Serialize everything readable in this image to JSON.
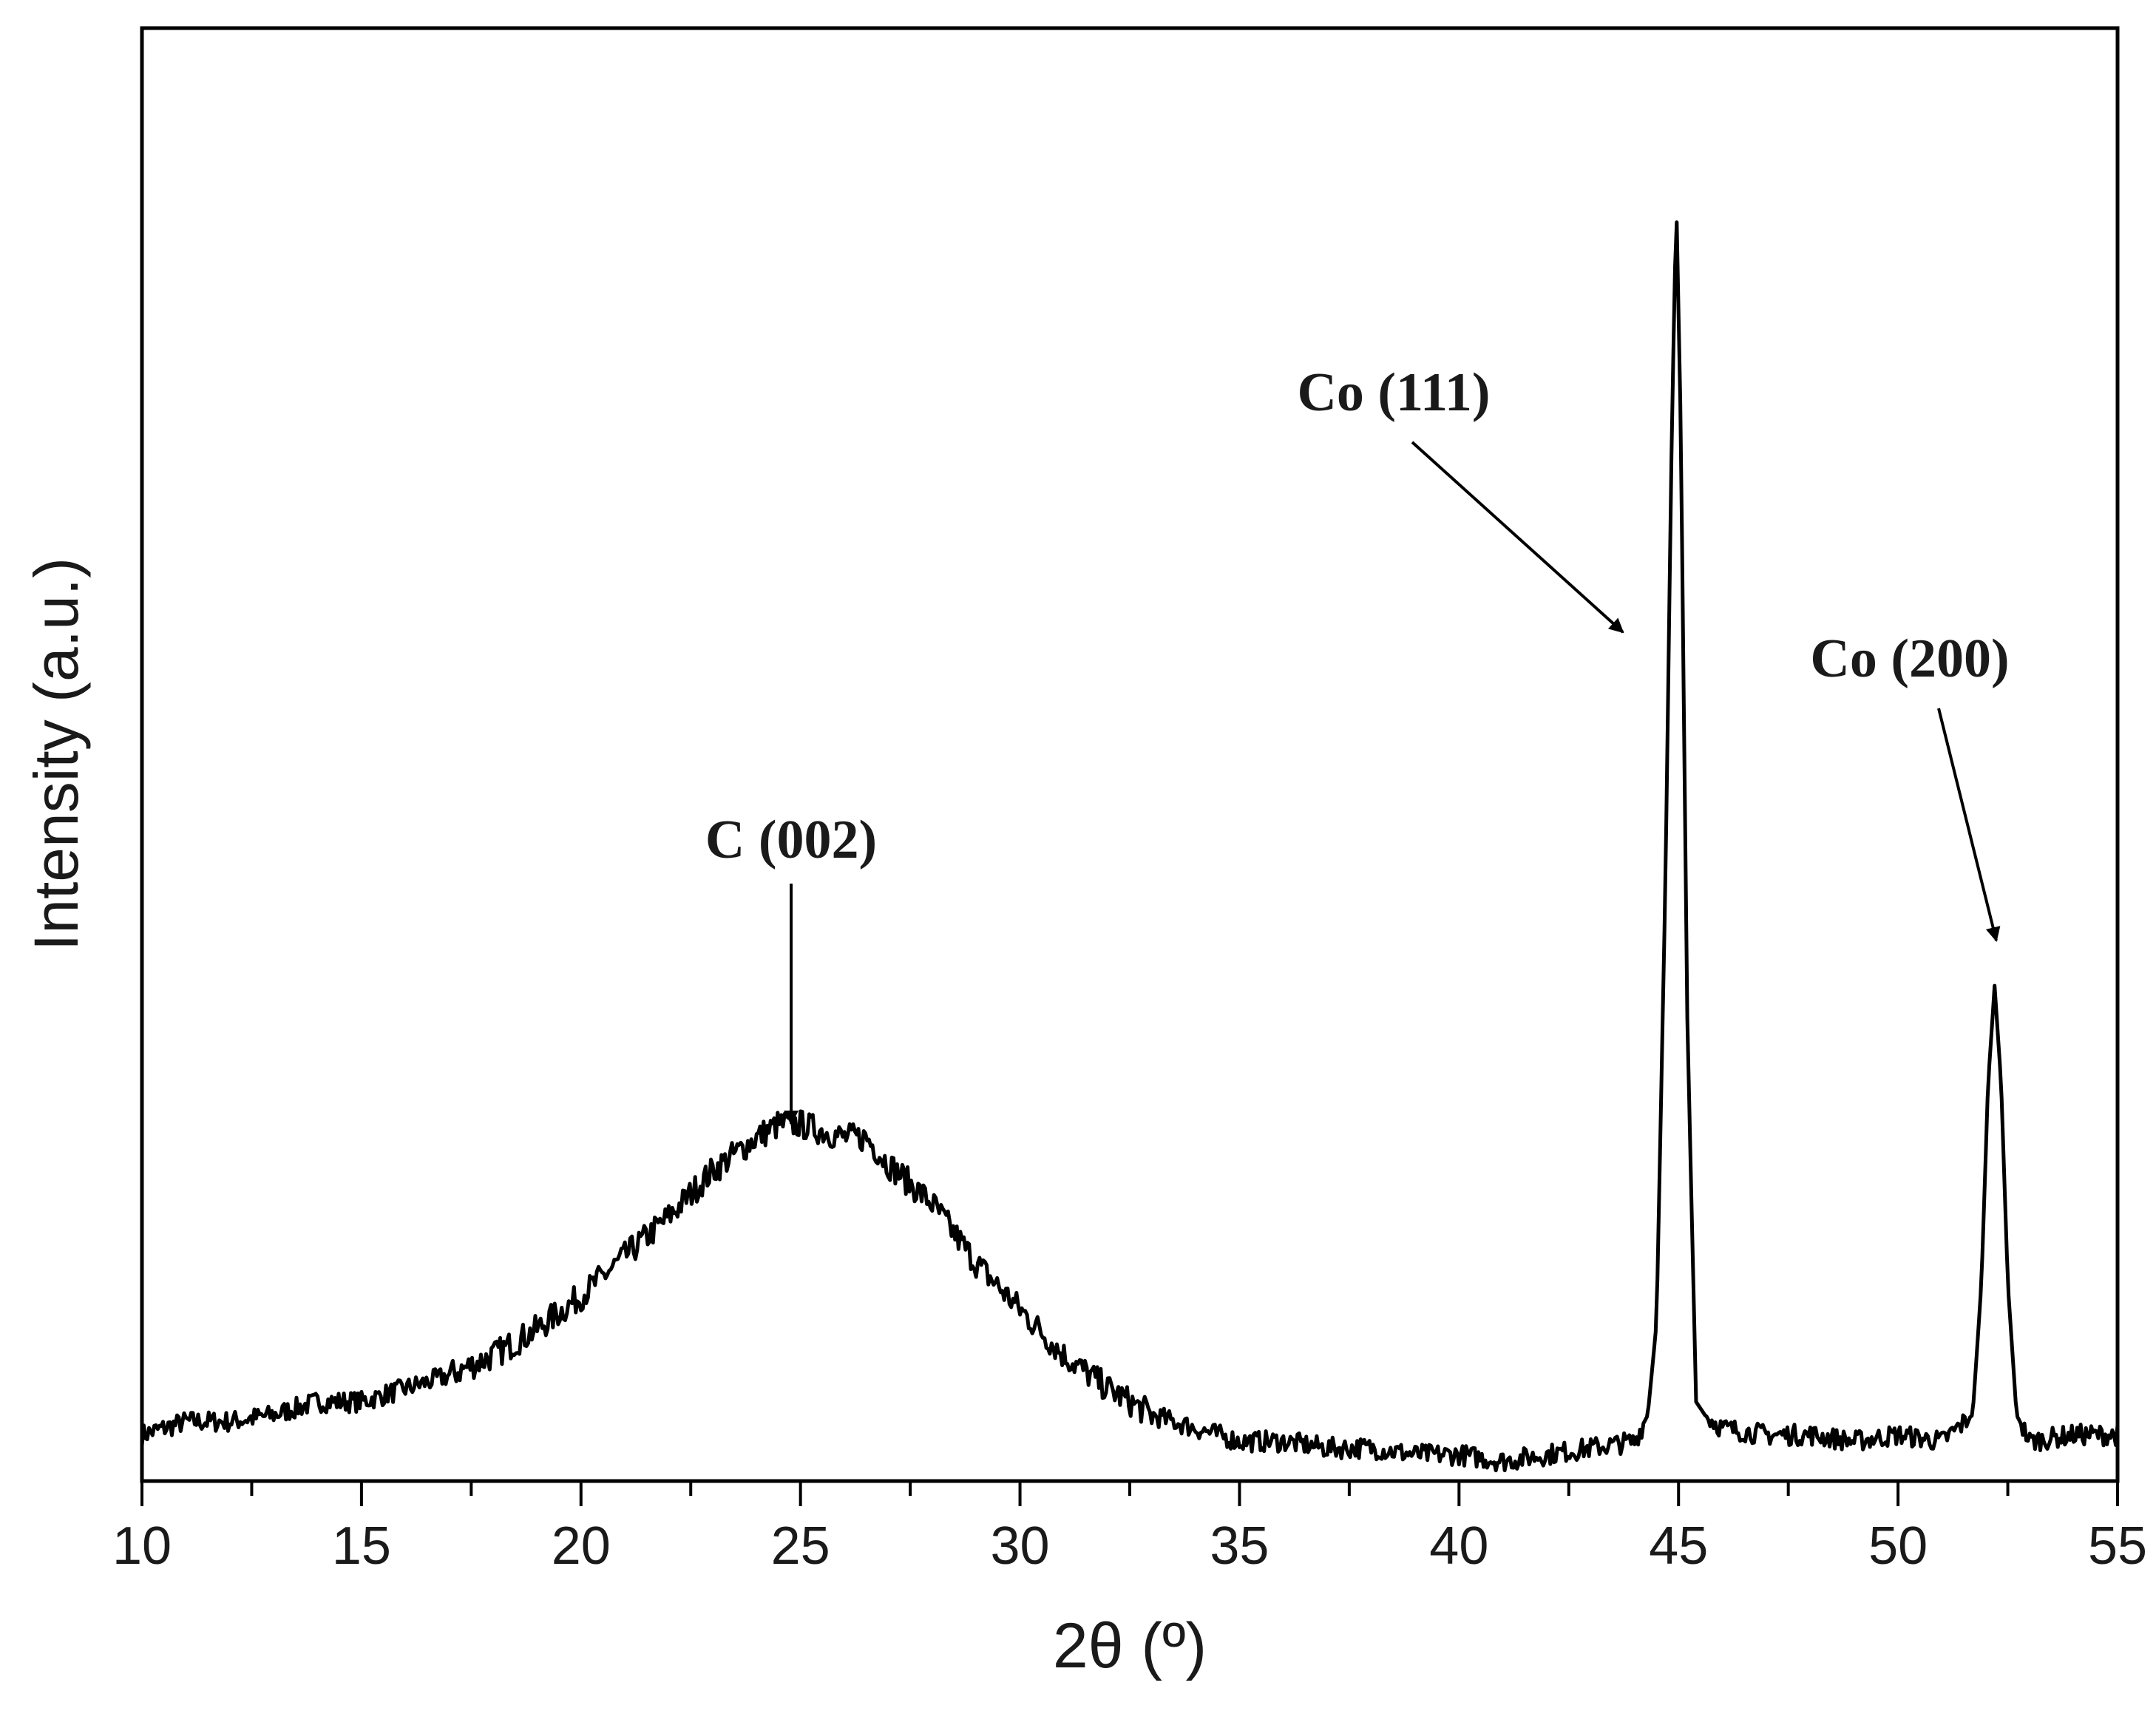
{
  "chart_data": {
    "type": "line",
    "title": "",
    "xlabel": "2θ (º)",
    "ylabel": "Intensity (a.u.)",
    "xlim": [
      10,
      55
    ],
    "ylim": [
      0,
      1.1
    ],
    "x_ticks": [
      10,
      15,
      20,
      25,
      30,
      35,
      40,
      45,
      50,
      55
    ],
    "x_minor_tick_step": 2.5,
    "y_ticks_shown": false,
    "grid": false,
    "legend": "none",
    "line_color": "#000000",
    "series": [
      {
        "x": [
          10,
          11,
          12,
          13,
          14,
          15,
          16,
          17,
          18,
          19,
          20,
          21,
          22,
          23,
          24,
          24.5,
          25,
          25.5,
          26,
          26.5,
          27,
          28,
          29,
          30,
          31,
          32,
          33,
          34,
          35,
          36,
          37,
          38,
          39,
          40,
          41,
          42,
          43,
          44,
          44.3,
          44.5,
          44.7,
          44.85,
          44.95,
          45.05,
          45.2,
          45.4,
          45.6,
          46,
          47,
          48,
          49,
          50,
          51,
          51.7,
          51.9,
          52.05,
          52.2,
          52.35,
          52.5,
          52.7,
          53,
          54,
          55
        ],
        "y": [
          0.035,
          0.045,
          0.045,
          0.05,
          0.06,
          0.06,
          0.07,
          0.08,
          0.095,
          0.115,
          0.14,
          0.17,
          0.2,
          0.235,
          0.26,
          0.27,
          0.27,
          0.265,
          0.26,
          0.26,
          0.24,
          0.21,
          0.165,
          0.13,
          0.095,
          0.07,
          0.05,
          0.04,
          0.03,
          0.03,
          0.025,
          0.025,
          0.02,
          0.02,
          0.015,
          0.02,
          0.025,
          0.03,
          0.05,
          0.12,
          0.45,
          0.8,
          0.97,
          0.8,
          0.35,
          0.06,
          0.05,
          0.04,
          0.035,
          0.035,
          0.03,
          0.035,
          0.03,
          0.05,
          0.15,
          0.3,
          0.375,
          0.3,
          0.15,
          0.05,
          0.03,
          0.035,
          0.035
        ]
      }
    ],
    "annotations": [
      {
        "text": "C (002)",
        "x": 24.8,
        "y": 0.29
      },
      {
        "text": "Co (111)",
        "x": 44.2,
        "y": 0.64
      },
      {
        "text": "Co (200)",
        "x": 52.2,
        "y": 0.41
      }
    ]
  }
}
